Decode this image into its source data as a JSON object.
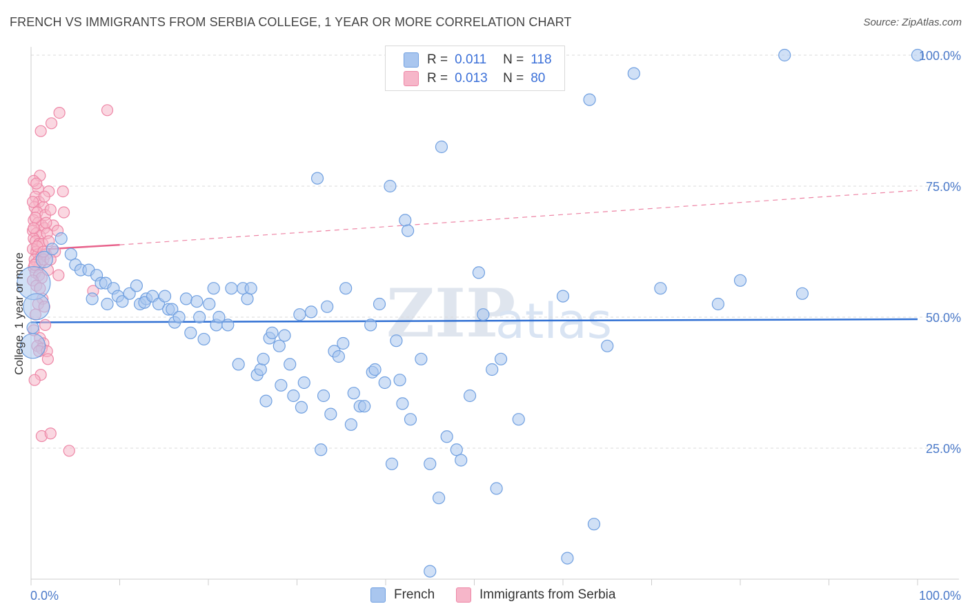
{
  "title": "FRENCH VS IMMIGRANTS FROM SERBIA COLLEGE, 1 YEAR OR MORE CORRELATION CHART",
  "source": "Source: ZipAtlas.com",
  "watermark": {
    "zip": "ZIP",
    "atlas": "atlas"
  },
  "legend": {
    "french": {
      "r_label": "R =",
      "r_value": "0.011",
      "n_label": "N =",
      "n_value": "118"
    },
    "serbia": {
      "r_label": "R =",
      "r_value": "0.013",
      "n_label": "N =",
      "n_value": "80"
    }
  },
  "bottom_legend": {
    "french": "French",
    "serbia": "Immigrants from Serbia"
  },
  "colors": {
    "french_fill": "#a9c6ef",
    "french_stroke": "#6f9fe0",
    "french_line": "#2f6fd3",
    "serbia_fill": "#f6b6c9",
    "serbia_stroke": "#ee86a6",
    "serbia_line": "#e8638c",
    "grid": "#d9d9d9",
    "axis_text": "#4a79c9"
  },
  "chart_data": {
    "type": "scatter",
    "title": "FRENCH VS IMMIGRANTS FROM SERBIA COLLEGE, 1 YEAR OR MORE CORRELATION CHART",
    "xlabel": "",
    "ylabel": "College, 1 year or more",
    "xlim": [
      0,
      100
    ],
    "ylim": [
      0,
      100
    ],
    "x_tick_labels": [
      "0.0%",
      "100.0%"
    ],
    "y_ticks": [
      25,
      50,
      75,
      100
    ],
    "y_tick_labels": [
      "25.0%",
      "50.0%",
      "75.0%",
      "100.0%"
    ],
    "grid": "horizontal dashed",
    "legend_position": "top-center",
    "series": [
      {
        "name": "French",
        "R": 0.011,
        "N": 118,
        "trend": {
          "x": [
            0,
            100
          ],
          "y": [
            49.0,
            49.6
          ]
        },
        "points": [
          [
            0.3,
            56.5
          ],
          [
            0.6,
            52
          ],
          [
            0.2,
            44.5
          ],
          [
            1.5,
            61
          ],
          [
            2.4,
            63
          ],
          [
            3.4,
            65
          ],
          [
            4.5,
            62
          ],
          [
            5,
            60
          ],
          [
            5.6,
            59
          ],
          [
            6.5,
            59
          ],
          [
            7.4,
            58
          ],
          [
            7.9,
            56.5
          ],
          [
            8.4,
            56.5
          ],
          [
            9.3,
            55.5
          ],
          [
            9.8,
            54
          ],
          [
            6.9,
            53.5
          ],
          [
            8.6,
            52.5
          ],
          [
            10.3,
            53
          ],
          [
            11.1,
            54.5
          ],
          [
            11.9,
            56
          ],
          [
            12.3,
            52.5
          ],
          [
            13,
            53.5
          ],
          [
            12.8,
            52.8
          ],
          [
            13.7,
            54
          ],
          [
            14.4,
            52.5
          ],
          [
            15.1,
            54
          ],
          [
            15.5,
            51.5
          ],
          [
            15.9,
            51.5
          ],
          [
            16.2,
            49
          ],
          [
            16.7,
            50
          ],
          [
            17.5,
            53.5
          ],
          [
            18,
            47
          ],
          [
            18.7,
            53
          ],
          [
            19,
            50
          ],
          [
            19.5,
            45.8
          ],
          [
            20.1,
            52.5
          ],
          [
            20.6,
            55.5
          ],
          [
            20.9,
            48.5
          ],
          [
            21.2,
            50
          ],
          [
            22.2,
            48.5
          ],
          [
            22.6,
            55.5
          ],
          [
            23.4,
            41
          ],
          [
            23.9,
            55.5
          ],
          [
            24.4,
            53.5
          ],
          [
            24.8,
            55.5
          ],
          [
            25.5,
            39
          ],
          [
            25.9,
            40
          ],
          [
            26.2,
            42
          ],
          [
            26.5,
            34
          ],
          [
            26.9,
            46
          ],
          [
            27.2,
            47
          ],
          [
            28,
            44.5
          ],
          [
            28.2,
            37
          ],
          [
            28.6,
            46.5
          ],
          [
            29.2,
            41
          ],
          [
            29.6,
            35
          ],
          [
            30.3,
            50.5
          ],
          [
            30.5,
            32.8
          ],
          [
            30.8,
            37.5
          ],
          [
            31.6,
            51
          ],
          [
            32.3,
            76.5
          ],
          [
            32.7,
            24.7
          ],
          [
            33,
            35
          ],
          [
            33.4,
            52
          ],
          [
            33.8,
            31.5
          ],
          [
            34.2,
            43.5
          ],
          [
            34.7,
            42.5
          ],
          [
            35.2,
            45
          ],
          [
            35.5,
            55.5
          ],
          [
            36.1,
            29.5
          ],
          [
            36.4,
            35.5
          ],
          [
            37.1,
            33
          ],
          [
            37.6,
            33
          ],
          [
            38.3,
            48.5
          ],
          [
            38.5,
            39.5
          ],
          [
            38.8,
            40
          ],
          [
            39.3,
            52.5
          ],
          [
            39.9,
            37.5
          ],
          [
            40.5,
            75
          ],
          [
            40.7,
            22
          ],
          [
            41.2,
            45.5
          ],
          [
            41.6,
            38
          ],
          [
            41.9,
            33.5
          ],
          [
            42.2,
            68.5
          ],
          [
            42.5,
            66.5
          ],
          [
            42.8,
            30.5
          ],
          [
            44,
            42
          ],
          [
            45,
            22
          ],
          [
            46,
            15.5
          ],
          [
            46.3,
            82.5
          ],
          [
            46.9,
            27.2
          ],
          [
            48,
            24.7
          ],
          [
            48.5,
            22.7
          ],
          [
            49.5,
            35
          ],
          [
            50.5,
            58.5
          ],
          [
            51,
            50.5
          ],
          [
            52,
            40
          ],
          [
            52.5,
            17.3
          ],
          [
            53,
            42
          ],
          [
            55,
            30.5
          ],
          [
            56,
            100
          ],
          [
            60,
            54
          ],
          [
            60.5,
            4
          ],
          [
            63,
            91.5
          ],
          [
            63.5,
            10.5
          ],
          [
            65,
            44.5
          ],
          [
            68,
            96.5
          ],
          [
            71,
            55.5
          ],
          [
            77.5,
            52.5
          ],
          [
            80,
            57
          ],
          [
            85,
            100
          ],
          [
            87,
            54.5
          ],
          [
            100,
            100
          ],
          [
            45,
            1.5
          ],
          [
            0.2,
            48
          ]
        ],
        "point_sizes_note": "mostly small; a few large markers near x=0"
      },
      {
        "name": "Immigrants from Serbia",
        "R": 0.013,
        "N": 80,
        "trend": {
          "x": [
            0,
            10
          ],
          "y": [
            62.8,
            63.8
          ],
          "dashed_extension": {
            "x": [
              10,
              100
            ],
            "y": [
              63.8,
              74.2
            ]
          }
        },
        "points": [
          [
            1.1,
            85.5
          ],
          [
            2.3,
            87
          ],
          [
            3.2,
            89
          ],
          [
            8.6,
            89.5
          ],
          [
            1,
            77
          ],
          [
            0.8,
            74.5
          ],
          [
            2,
            74
          ],
          [
            3.6,
            74
          ],
          [
            0.5,
            73
          ],
          [
            0.9,
            72
          ],
          [
            0.4,
            71
          ],
          [
            1.4,
            71
          ],
          [
            0.7,
            70
          ],
          [
            1.6,
            69.5
          ],
          [
            3.7,
            70
          ],
          [
            0.3,
            68.5
          ],
          [
            0.8,
            68
          ],
          [
            1.2,
            67.5
          ],
          [
            1.5,
            67
          ],
          [
            2.5,
            67.5
          ],
          [
            0.2,
            66.5
          ],
          [
            0.6,
            66
          ],
          [
            1,
            65.5
          ],
          [
            1.8,
            66
          ],
          [
            3,
            66.5
          ],
          [
            0.3,
            65
          ],
          [
            0.5,
            64.5
          ],
          [
            0.9,
            64
          ],
          [
            1.3,
            64
          ],
          [
            2,
            64.5
          ],
          [
            0.2,
            63
          ],
          [
            0.6,
            62.5
          ],
          [
            0.8,
            62
          ],
          [
            1.1,
            61.5
          ],
          [
            1.7,
            62
          ],
          [
            2.7,
            62.5
          ],
          [
            0.4,
            61
          ],
          [
            0.7,
            60.5
          ],
          [
            1,
            60
          ],
          [
            1.4,
            61
          ],
          [
            2.2,
            61
          ],
          [
            0.3,
            59.5
          ],
          [
            0.5,
            58.5
          ],
          [
            0.9,
            58
          ],
          [
            1.2,
            57.5
          ],
          [
            1.9,
            59
          ],
          [
            3.1,
            58
          ],
          [
            0.2,
            57
          ],
          [
            0.6,
            56
          ],
          [
            1,
            55.5
          ],
          [
            1.3,
            53.5
          ],
          [
            0.8,
            52.5
          ],
          [
            1.5,
            52
          ],
          [
            7,
            55
          ],
          [
            0.5,
            50.5
          ],
          [
            1.6,
            48.5
          ],
          [
            0.3,
            47.5
          ],
          [
            1,
            46
          ],
          [
            1.4,
            45
          ],
          [
            0.7,
            44.5
          ],
          [
            1.2,
            44
          ],
          [
            0.9,
            43.5
          ],
          [
            1.8,
            43.5
          ],
          [
            1.9,
            42
          ],
          [
            1.1,
            39
          ],
          [
            0.4,
            38
          ],
          [
            1.2,
            27.3
          ],
          [
            2.2,
            27.8
          ],
          [
            4.3,
            24.5
          ],
          [
            0.3,
            76
          ],
          [
            0.6,
            75.5
          ],
          [
            1.5,
            73
          ],
          [
            0.2,
            72
          ],
          [
            2.2,
            70.5
          ],
          [
            0.5,
            69
          ],
          [
            1.7,
            68
          ],
          [
            0.3,
            67
          ],
          [
            0.7,
            63.5
          ],
          [
            1.4,
            62.5
          ],
          [
            0.4,
            60
          ]
        ]
      }
    ]
  }
}
